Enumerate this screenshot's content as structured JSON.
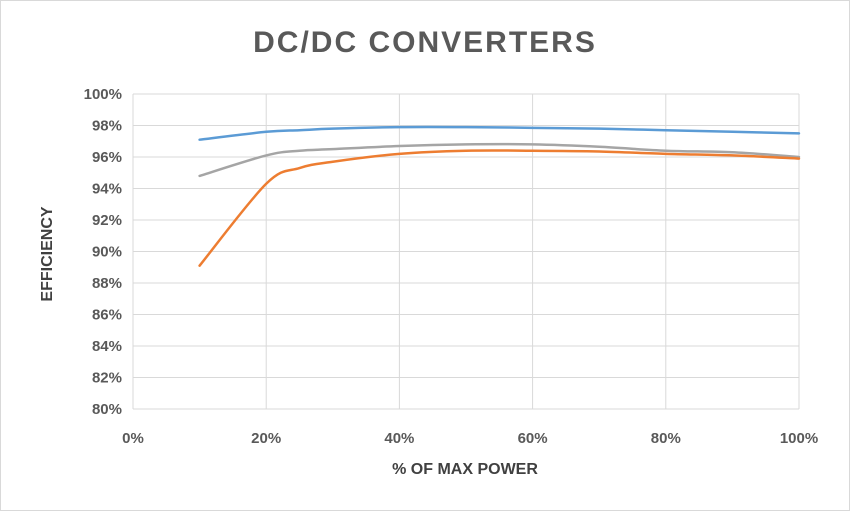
{
  "chart_data": {
    "type": "line",
    "title": "DC/DC CONVERTERS",
    "xlabel": "% OF MAX POWER",
    "ylabel": "EFFICIENCY",
    "xlim": [
      0,
      100
    ],
    "ylim": [
      80,
      100
    ],
    "x_ticks": [
      "0%",
      "20%",
      "40%",
      "60%",
      "80%",
      "100%"
    ],
    "y_ticks": [
      "80%",
      "82%",
      "84%",
      "86%",
      "88%",
      "90%",
      "92%",
      "94%",
      "96%",
      "98%",
      "100%"
    ],
    "grid": "vertical and horizontal",
    "legend": "none",
    "x": [
      10,
      20,
      25,
      30,
      40,
      50,
      60,
      70,
      80,
      90,
      100
    ],
    "series": [
      {
        "color": "#5b9bd5",
        "values": [
          97.1,
          97.6,
          97.7,
          97.8,
          97.9,
          97.9,
          97.85,
          97.8,
          97.7,
          97.6,
          97.5
        ]
      },
      {
        "color": "#a5a5a5",
        "values": [
          94.8,
          96.1,
          96.4,
          96.5,
          96.7,
          96.8,
          96.8,
          96.65,
          96.4,
          96.3,
          96.0
        ]
      },
      {
        "color": "#ed7d31",
        "values": [
          89.1,
          94.3,
          95.3,
          95.7,
          96.2,
          96.4,
          96.4,
          96.35,
          96.2,
          96.1,
          95.9
        ]
      }
    ]
  }
}
